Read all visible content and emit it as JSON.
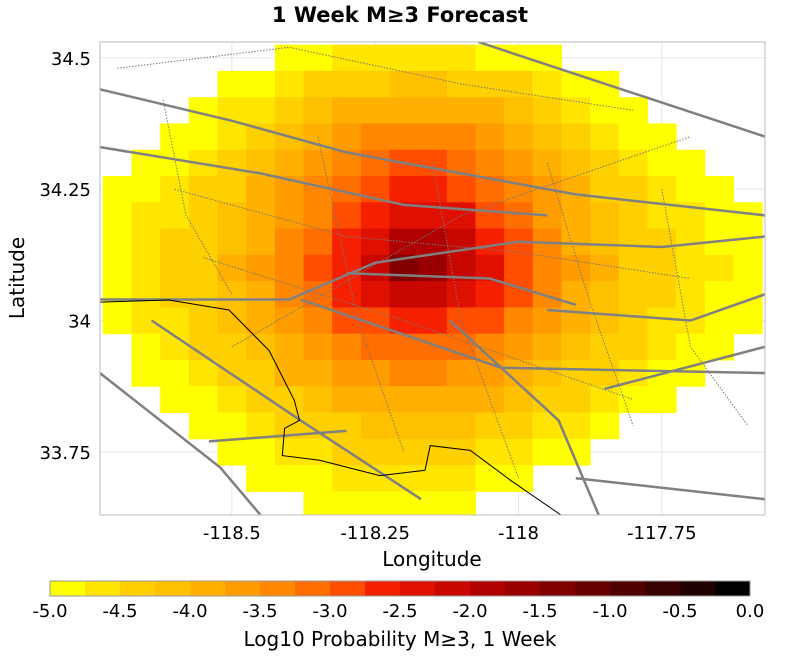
{
  "chart_data": {
    "type": "heatmap",
    "title": "1 Week M≥3 Forecast",
    "xlabel": "Longitude",
    "ylabel": "Latitude",
    "xlim": [
      -118.73,
      -117.57
    ],
    "ylim": [
      33.63,
      34.53
    ],
    "xticks": [
      -118.5,
      -118.25,
      -118,
      -117.75
    ],
    "xtick_labels": [
      "-118.5",
      "-118.25",
      "-118",
      "-117.75"
    ],
    "yticks": [
      34.5,
      34.25,
      34,
      33.75
    ],
    "ytick_labels": [
      "34.5",
      "34.25",
      "34",
      "33.75"
    ],
    "grid": true,
    "cell_size_deg": 0.05,
    "lons": [
      -118.7,
      -118.65,
      -118.6,
      -118.55,
      -118.5,
      -118.45,
      -118.4,
      -118.35,
      -118.3,
      -118.25,
      -118.2,
      -118.15,
      -118.1,
      -118.05,
      -118.0,
      -117.95,
      -117.9,
      -117.85,
      -117.8,
      -117.75,
      -117.7,
      -117.65,
      -117.6
    ],
    "lats": [
      34.5,
      34.45,
      34.4,
      34.35,
      34.3,
      34.25,
      34.2,
      34.15,
      34.1,
      34.05,
      34.0,
      33.95,
      33.9,
      33.85,
      33.8,
      33.75,
      33.7,
      33.65
    ],
    "values": [
      [
        null,
        null,
        null,
        null,
        null,
        null,
        -4.9,
        -4.8,
        -4.7,
        -4.7,
        -4.6,
        -4.6,
        -4.7,
        -4.8,
        -4.8,
        -4.9,
        null,
        null,
        null,
        null,
        null,
        null,
        null
      ],
      [
        null,
        null,
        null,
        null,
        -4.9,
        -4.8,
        -4.6,
        -4.5,
        -4.4,
        -4.3,
        -4.2,
        -4.2,
        -4.3,
        -4.4,
        -4.5,
        -4.6,
        -4.8,
        -4.9,
        null,
        null,
        null,
        null,
        null
      ],
      [
        null,
        null,
        null,
        -4.9,
        -4.7,
        -4.6,
        -4.4,
        -4.2,
        -4.0,
        -3.9,
        -3.8,
        -3.8,
        -3.9,
        -4.0,
        -4.2,
        -4.4,
        -4.6,
        -4.8,
        -4.9,
        null,
        null,
        null,
        null
      ],
      [
        null,
        null,
        -4.9,
        -4.8,
        -4.6,
        -4.4,
        -4.1,
        -3.9,
        -3.7,
        -3.5,
        -3.4,
        -3.4,
        -3.5,
        -3.7,
        -3.9,
        -4.1,
        -4.4,
        -4.6,
        -4.8,
        -4.9,
        null,
        null,
        null
      ],
      [
        null,
        -4.9,
        -4.8,
        -4.6,
        -4.4,
        -4.2,
        -3.9,
        -3.6,
        -3.4,
        -3.2,
        -3.0,
        -3.0,
        -3.1,
        -3.3,
        -3.6,
        -3.9,
        -4.2,
        -4.4,
        -4.6,
        -4.8,
        -4.9,
        null,
        null
      ],
      [
        -4.9,
        -4.8,
        -4.7,
        -4.5,
        -4.3,
        -4.0,
        -3.7,
        -3.4,
        -3.1,
        -2.9,
        -2.7,
        -2.7,
        -2.8,
        -3.1,
        -3.4,
        -3.7,
        -4.0,
        -4.3,
        -4.5,
        -4.7,
        -4.8,
        -4.9,
        null
      ],
      [
        -4.9,
        -4.7,
        -4.6,
        -4.4,
        -4.2,
        -3.9,
        -3.6,
        -3.3,
        -2.9,
        -2.6,
        -2.4,
        -2.4,
        -2.5,
        -2.8,
        -3.2,
        -3.6,
        -3.9,
        -4.2,
        -4.4,
        -4.6,
        -4.7,
        -4.8,
        -4.9
      ],
      [
        -4.8,
        -4.7,
        -4.5,
        -4.3,
        -4.1,
        -3.8,
        -3.5,
        -3.1,
        -2.7,
        -2.3,
        -2.0,
        -2.0,
        -2.2,
        -2.6,
        -3.0,
        -3.4,
        -3.8,
        -4.1,
        -4.3,
        -4.5,
        -4.6,
        -4.8,
        -4.9
      ],
      [
        -4.8,
        -4.6,
        -4.5,
        -4.3,
        -4.0,
        -3.7,
        -3.4,
        -3.0,
        -2.6,
        -2.1,
        -1.4,
        -1.7,
        -2.1,
        -2.5,
        -2.9,
        -3.3,
        -3.7,
        -4.0,
        -4.3,
        -4.5,
        -4.6,
        -4.7,
        -4.9
      ],
      [
        -4.8,
        -4.7,
        -4.5,
        -4.3,
        -4.1,
        -3.8,
        -3.5,
        -3.1,
        -2.7,
        -2.4,
        -2.2,
        -2.2,
        -2.4,
        -2.7,
        -3.0,
        -3.4,
        -3.8,
        -4.1,
        -4.3,
        -4.5,
        -4.6,
        -4.8,
        -4.9
      ],
      [
        -4.9,
        -4.7,
        -4.6,
        -4.4,
        -4.2,
        -3.9,
        -3.6,
        -3.3,
        -3.0,
        -2.8,
        -2.7,
        -2.7,
        -2.8,
        -3.0,
        -3.3,
        -3.6,
        -3.9,
        -4.2,
        -4.4,
        -4.6,
        -4.7,
        -4.8,
        -4.9
      ],
      [
        null,
        -4.8,
        -4.7,
        -4.5,
        -4.3,
        -4.1,
        -3.8,
        -3.6,
        -3.4,
        -3.2,
        -3.1,
        -3.1,
        -3.2,
        -3.4,
        -3.6,
        -3.9,
        -4.1,
        -4.3,
        -4.5,
        -4.7,
        -4.8,
        -4.9,
        null
      ],
      [
        null,
        -4.9,
        -4.8,
        -4.6,
        -4.5,
        -4.3,
        -4.0,
        -3.8,
        -3.7,
        -3.6,
        -3.5,
        -3.5,
        -3.6,
        -3.7,
        -3.9,
        -4.1,
        -4.3,
        -4.5,
        -4.7,
        -4.8,
        -4.9,
        null,
        null
      ],
      [
        null,
        null,
        -4.9,
        -4.8,
        -4.6,
        -4.5,
        -4.3,
        -4.1,
        -4.0,
        -3.9,
        -3.8,
        -3.8,
        -3.9,
        -4.0,
        -4.2,
        -4.4,
        -4.5,
        -4.7,
        -4.8,
        -4.9,
        null,
        null,
        null
      ],
      [
        null,
        null,
        null,
        -4.9,
        -4.8,
        -4.7,
        -4.5,
        -4.4,
        -4.3,
        -4.2,
        -4.1,
        -4.1,
        -4.2,
        -4.3,
        -4.4,
        -4.6,
        -4.7,
        -4.9,
        null,
        null,
        null,
        null,
        null
      ],
      [
        null,
        null,
        null,
        null,
        -4.9,
        -4.8,
        -4.7,
        -4.6,
        -4.5,
        -4.4,
        -4.4,
        -4.4,
        -4.5,
        -4.6,
        -4.7,
        -4.8,
        -4.9,
        null,
        null,
        null,
        null,
        null,
        null
      ],
      [
        null,
        null,
        null,
        null,
        null,
        -4.9,
        -4.8,
        -4.8,
        -4.7,
        -4.7,
        -4.6,
        -4.7,
        -4.7,
        -4.8,
        -4.9,
        null,
        null,
        null,
        null,
        null,
        null,
        null,
        null
      ],
      [
        null,
        null,
        null,
        null,
        null,
        null,
        null,
        -4.9,
        -4.9,
        -4.9,
        -4.8,
        -4.9,
        -4.9,
        null,
        null,
        null,
        null,
        null,
        null,
        null,
        null,
        null,
        null
      ]
    ],
    "faults_major": [
      [
        [
          -118.73,
          34.44
        ],
        [
          -118.5,
          34.38
        ],
        [
          -118.3,
          34.32
        ],
        [
          -118.1,
          34.28
        ],
        [
          -117.9,
          34.24
        ],
        [
          -117.57,
          34.2
        ]
      ],
      [
        [
          -118.07,
          34.53
        ],
        [
          -117.57,
          34.35
        ]
      ],
      [
        [
          -118.73,
          34.04
        ],
        [
          -118.4,
          34.04
        ],
        [
          -118.25,
          34.11
        ],
        [
          -118.0,
          34.15
        ],
        [
          -117.75,
          34.14
        ],
        [
          -117.57,
          34.16
        ]
      ],
      [
        [
          -118.64,
          34.0
        ],
        [
          -118.38,
          33.81
        ],
        [
          -118.17,
          33.66
        ]
      ],
      [
        [
          -118.38,
          34.04
        ],
        [
          -118.03,
          33.91
        ],
        [
          -117.57,
          33.9
        ]
      ],
      [
        [
          -118.73,
          33.9
        ],
        [
          -118.52,
          33.72
        ],
        [
          -118.45,
          33.63
        ]
      ],
      [
        [
          -118.12,
          34.0
        ],
        [
          -117.93,
          33.81
        ],
        [
          -117.86,
          33.63
        ]
      ],
      [
        [
          -117.9,
          33.7
        ],
        [
          -117.57,
          33.66
        ]
      ],
      [
        [
          -118.54,
          33.77
        ],
        [
          -118.3,
          33.79
        ]
      ],
      [
        [
          -118.73,
          34.33
        ],
        [
          -118.45,
          34.28
        ],
        [
          -118.2,
          34.22
        ],
        [
          -117.95,
          34.2
        ]
      ],
      [
        [
          -118.3,
          34.09
        ],
        [
          -118.05,
          34.08
        ],
        [
          -117.9,
          34.03
        ]
      ],
      [
        [
          -117.85,
          33.87
        ],
        [
          -117.57,
          33.95
        ]
      ],
      [
        [
          -117.95,
          34.02
        ],
        [
          -117.7,
          34.0
        ],
        [
          -117.57,
          34.05
        ]
      ]
    ],
    "faults_minor": [
      [
        [
          -118.7,
          34.48
        ],
        [
          -118.4,
          34.52
        ],
        [
          -118.1,
          34.45
        ],
        [
          -117.8,
          34.4
        ]
      ],
      [
        [
          -118.6,
          34.25
        ],
        [
          -118.3,
          34.16
        ],
        [
          -118.0,
          34.13
        ],
        [
          -117.7,
          34.08
        ]
      ],
      [
        [
          -118.35,
          34.35
        ],
        [
          -118.28,
          34.0
        ],
        [
          -118.2,
          33.75
        ]
      ],
      [
        [
          -118.15,
          34.3
        ],
        [
          -118.1,
          34.0
        ],
        [
          -118.0,
          33.7
        ]
      ],
      [
        [
          -117.95,
          34.3
        ],
        [
          -117.88,
          34.05
        ],
        [
          -117.8,
          33.8
        ]
      ],
      [
        [
          -118.55,
          34.12
        ],
        [
          -118.2,
          34.0
        ],
        [
          -117.8,
          33.85
        ]
      ],
      [
        [
          -118.5,
          33.95
        ],
        [
          -118.1,
          34.2
        ],
        [
          -117.7,
          34.35
        ]
      ],
      [
        [
          -117.75,
          34.25
        ],
        [
          -117.7,
          33.95
        ],
        [
          -117.6,
          33.8
        ]
      ],
      [
        [
          -118.62,
          34.42
        ],
        [
          -118.58,
          34.2
        ],
        [
          -118.5,
          34.05
        ]
      ]
    ],
    "coastline": [
      [
        -118.733,
        34.035
      ],
      [
        -118.61,
        34.039
      ],
      [
        -118.505,
        34.02
      ],
      [
        -118.435,
        33.943
      ],
      [
        -118.391,
        33.848
      ],
      [
        -118.382,
        33.81
      ],
      [
        -118.408,
        33.795
      ],
      [
        -118.412,
        33.743
      ],
      [
        -118.347,
        33.734
      ],
      [
        -118.242,
        33.705
      ],
      [
        -118.163,
        33.715
      ],
      [
        -118.154,
        33.762
      ],
      [
        -118.084,
        33.753
      ],
      [
        -118.014,
        33.696
      ],
      [
        -117.926,
        33.63
      ]
    ],
    "colorbar": {
      "label": "Log10 Probability M≥3, 1 Week",
      "range": [
        -5.0,
        0.0
      ],
      "tick_values": [
        -5,
        -4.5,
        -4,
        -3.5,
        -3,
        -2.5,
        -2,
        -1.5,
        -1,
        -0.5,
        0
      ],
      "tick_labels": [
        "-5.0",
        "-4.5",
        "-4.0",
        "-3.5",
        "-3.0",
        "-2.5",
        "-2.0",
        "-1.5",
        "-1.0",
        "-0.5",
        "0.0"
      ],
      "colors": [
        "#ffff00",
        "#ffe500",
        "#ffd000",
        "#ffc000",
        "#ffb000",
        "#ff9c00",
        "#ff8800",
        "#ff6e00",
        "#ff4e00",
        "#f52000",
        "#e01000",
        "#c80800",
        "#b00000",
        "#980000",
        "#800000",
        "#680000",
        "#500000",
        "#380000",
        "#200000",
        "#000000"
      ]
    }
  }
}
